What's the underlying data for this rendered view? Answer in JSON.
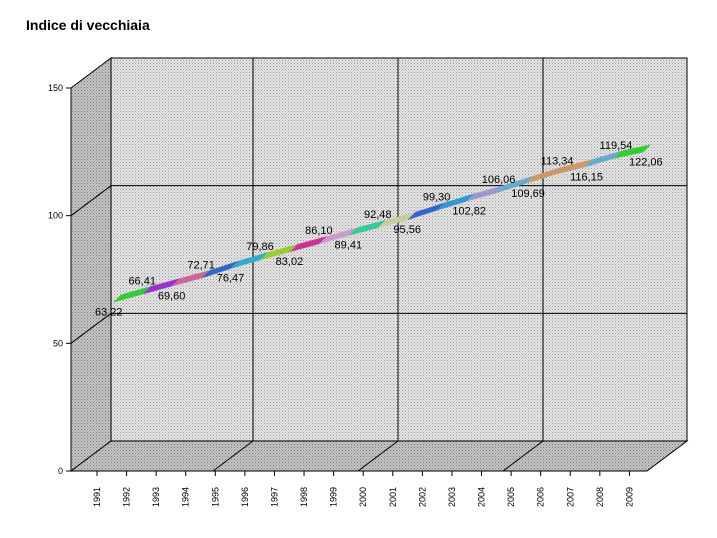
{
  "chart_data": {
    "type": "line",
    "title": "Indice di vecchiaia",
    "xlabel": "",
    "ylabel": "",
    "ylim": [
      0,
      150
    ],
    "yticks": [
      0,
      50,
      100,
      150
    ],
    "grid": true,
    "style": "3d",
    "categories": [
      "1991",
      "1992",
      "1993",
      "1994",
      "1995",
      "1996",
      "1997",
      "1998",
      "1999",
      "2000",
      "2001",
      "2002",
      "2003",
      "2004",
      "2005",
      "2006",
      "2007",
      "2008",
      "2009"
    ],
    "values": [
      63.22,
      66.41,
      69.6,
      72.71,
      76.47,
      79.86,
      83.02,
      86.1,
      89.41,
      92.48,
      95.56,
      99.3,
      102.82,
      106.06,
      109.69,
      113.34,
      116.15,
      119.54,
      122.06
    ],
    "labels": [
      "63,22",
      "66,41",
      "69,60",
      "72,71",
      "76,47",
      "79,86",
      "83,02",
      "86,10",
      "89,41",
      "92,48",
      "95,56",
      "99,30",
      "102,82",
      "106,06",
      "109,69",
      "113,34",
      "116,15",
      "119,54",
      "122,06"
    ],
    "segment_colors": [
      "#33cc33",
      "#9933cc",
      "#cc6699",
      "#3366cc",
      "#33aacc",
      "#99cc33",
      "#cc3399",
      "#cc99cc",
      "#33cc99",
      "#cccc99",
      "#3366cc",
      "#3399cc",
      "#9999cc",
      "#66aacc",
      "#cc9966",
      "#cc9966",
      "#66aacc",
      "#33cc33",
      "#9933cc"
    ]
  }
}
